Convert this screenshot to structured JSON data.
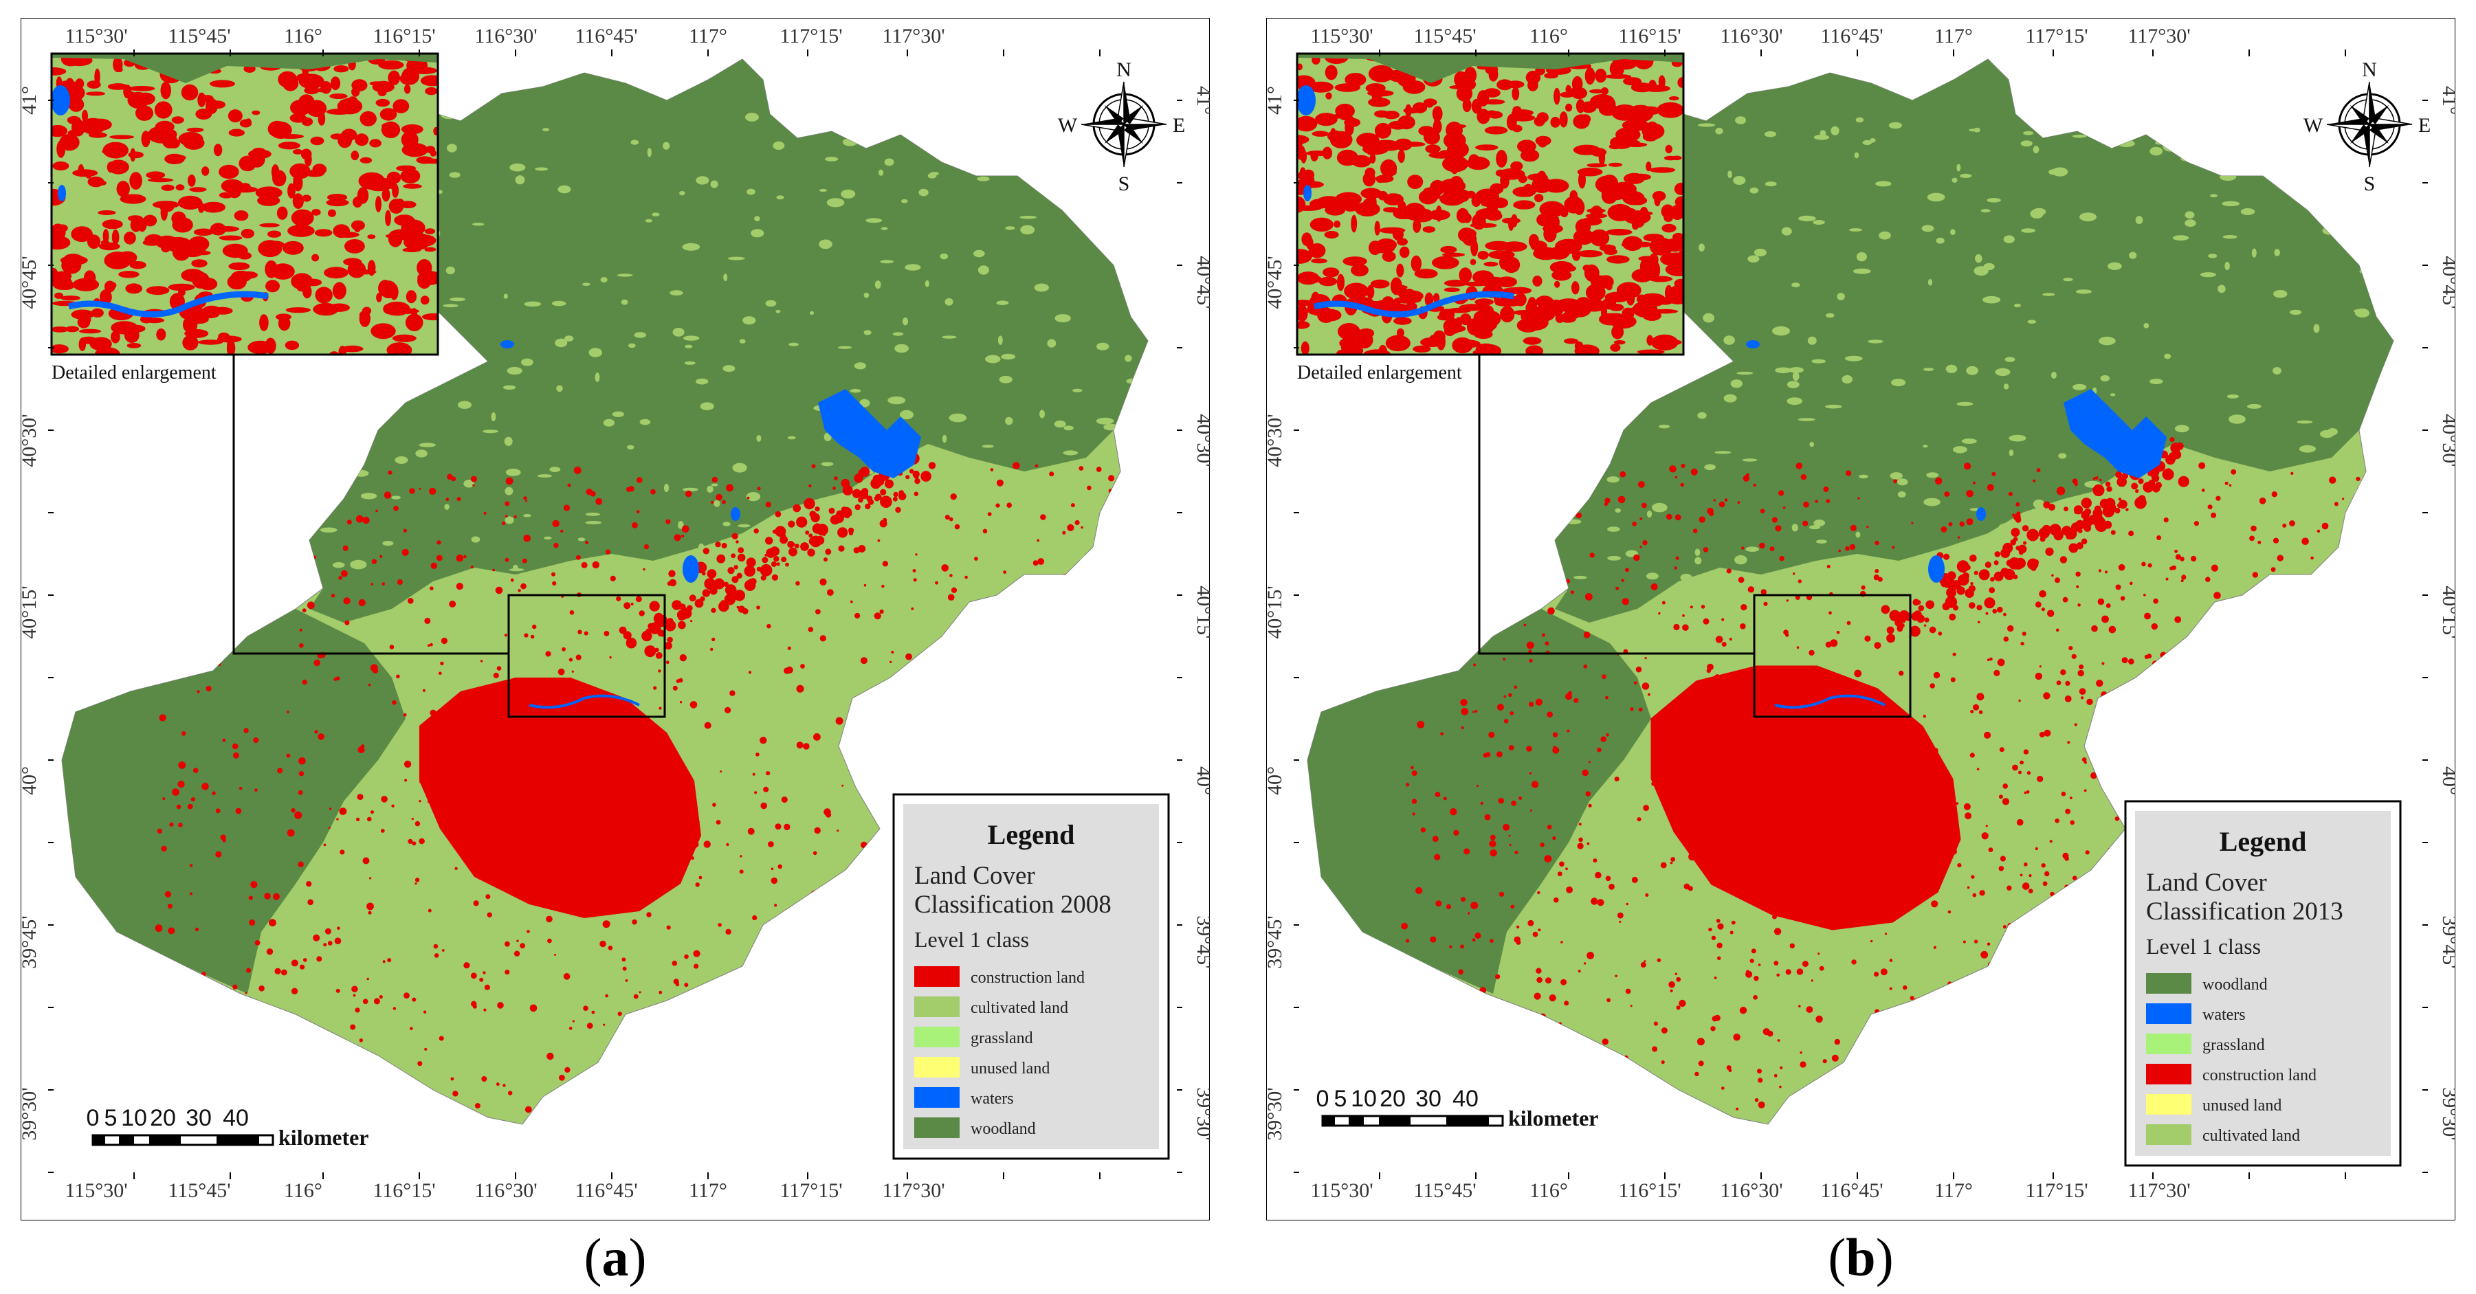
{
  "colors": {
    "construction_land": "#e60000",
    "cultivated_land": "#a3cc6a",
    "grassland": "#a8f27a",
    "unused_land": "#ffff73",
    "waters": "#0064ff",
    "woodland": "#5a8a46",
    "legend_bg": "#dedede"
  },
  "panels": [
    {
      "caption": "a",
      "enlargement_label": "Detailed enlargement",
      "compass": {
        "n": "N",
        "s": "S",
        "e": "E",
        "w": "W"
      },
      "top_ticks": [
        "115°30'",
        "115°45'",
        "116°",
        "116°15'",
        "116°30'",
        "116°45'",
        "117°",
        "117°15'",
        "117°30'"
      ],
      "bottom_ticks": [
        "115°30'",
        "115°45'",
        "116°",
        "116°15'",
        "116°30'",
        "116°45'",
        "117°",
        "117°15'",
        "117°30'"
      ],
      "side_ticks": [
        "41°",
        "40°45'",
        "40°30'",
        "40°15'",
        "40°",
        "39°45'",
        "39°30'"
      ],
      "legend": {
        "title": "Legend",
        "subtitle_line1": "Land Cover",
        "subtitle_line2": "Classification 2008",
        "level": "Level 1 class",
        "items": [
          {
            "label": "construction land",
            "color": "#e60000"
          },
          {
            "label": "cultivated land",
            "color": "#a3cc6a"
          },
          {
            "label": "grassland",
            "color": "#a8f27a"
          },
          {
            "label": "unused land",
            "color": "#ffff73"
          },
          {
            "label": "waters",
            "color": "#0064ff"
          },
          {
            "label": "woodland",
            "color": "#5a8a46"
          }
        ]
      },
      "scale": {
        "labels": [
          "0",
          "5",
          "10",
          "20",
          "30",
          "40"
        ],
        "unit": "kilometer"
      }
    },
    {
      "caption": "b",
      "enlargement_label": "Detailed enlargement",
      "compass": {
        "n": "N",
        "s": "S",
        "e": "E",
        "w": "W"
      },
      "top_ticks": [
        "115°30'",
        "115°45'",
        "116°",
        "116°15'",
        "116°30'",
        "116°45'",
        "117°",
        "117°15'",
        "117°30'"
      ],
      "bottom_ticks": [
        "115°30'",
        "115°45'",
        "116°",
        "116°15'",
        "116°30'",
        "116°45'",
        "117°",
        "117°15'",
        "117°30'"
      ],
      "side_ticks": [
        "41°",
        "40°45'",
        "40°30'",
        "40°15'",
        "40°",
        "39°45'",
        "39°30'"
      ],
      "legend": {
        "title": "Legend",
        "subtitle_line1": "Land Cover",
        "subtitle_line2": "Classification 2013",
        "level": "Level 1 class",
        "items": [
          {
            "label": "woodland",
            "color": "#5a8a46"
          },
          {
            "label": "waters",
            "color": "#0064ff"
          },
          {
            "label": "grassland",
            "color": "#a8f27a"
          },
          {
            "label": "construction land",
            "color": "#e60000"
          },
          {
            "label": "unused land",
            "color": "#ffff73"
          },
          {
            "label": "cultivated land",
            "color": "#a3cc6a"
          }
        ]
      },
      "scale": {
        "labels": [
          "0",
          "5",
          "10",
          "20",
          "30",
          "40"
        ],
        "unit": "kilometer"
      }
    }
  ]
}
